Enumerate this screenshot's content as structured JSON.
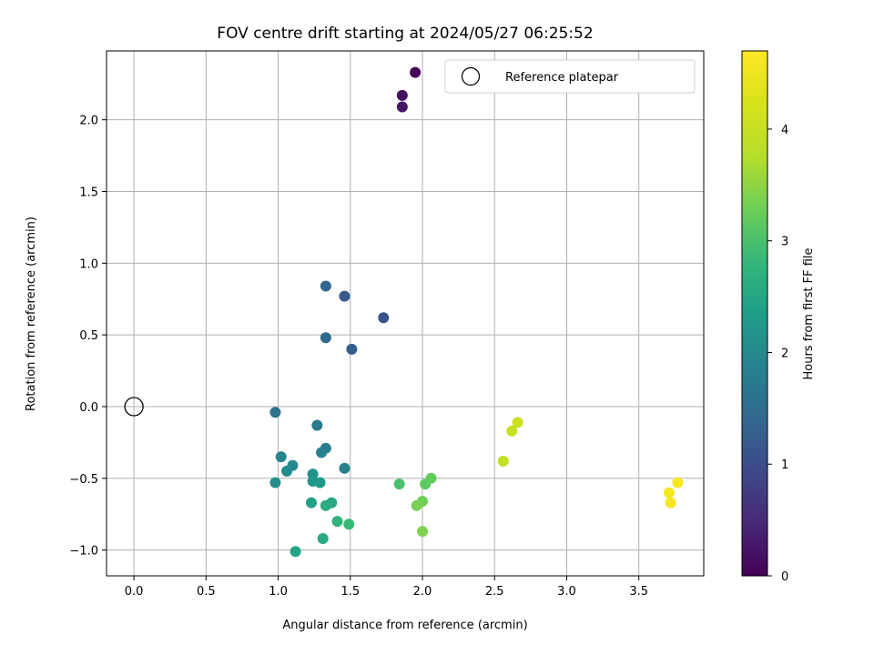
{
  "chart_data": {
    "type": "scatter",
    "title": "FOV centre drift starting at 2024/05/27 06:25:52",
    "xlabel": "Angular distance from reference (arcmin)",
    "ylabel": "Rotation from reference (arcmin)",
    "xlim": [
      -0.19,
      3.95
    ],
    "ylim": [
      -1.18,
      2.48
    ],
    "xticks": [
      0.0,
      0.5,
      1.0,
      1.5,
      2.0,
      2.5,
      3.0,
      3.5
    ],
    "xtick_labels": [
      "0.0",
      "0.5",
      "1.0",
      "1.5",
      "2.0",
      "2.5",
      "3.0",
      "3.5"
    ],
    "yticks": [
      -1.0,
      -0.5,
      0.0,
      0.5,
      1.0,
      1.5,
      2.0
    ],
    "ytick_labels": [
      "−1.0",
      "−0.5",
      "0.0",
      "0.5",
      "1.0",
      "1.5",
      "2.0"
    ],
    "grid": true,
    "legend": {
      "placement": "upper right",
      "entries": [
        "Reference platepar"
      ]
    },
    "colorbar": {
      "label": "Hours from first FF file",
      "min": 0,
      "max": 4.7,
      "ticks": [
        0,
        1,
        2,
        3,
        4
      ],
      "tick_labels": [
        "0",
        "1",
        "2",
        "3",
        "4"
      ],
      "colormap": "viridis"
    },
    "reference_point": {
      "x": 0.0,
      "y": 0.0,
      "label": "Reference platepar"
    },
    "points": [
      {
        "x": 1.95,
        "y": 2.33,
        "c": 0.05
      },
      {
        "x": 1.86,
        "y": 2.17,
        "c": 0.15
      },
      {
        "x": 1.86,
        "y": 2.09,
        "c": 0.25
      },
      {
        "x": 1.73,
        "y": 0.62,
        "c": 1.1
      },
      {
        "x": 1.46,
        "y": 0.77,
        "c": 1.2
      },
      {
        "x": 1.51,
        "y": 0.4,
        "c": 1.25
      },
      {
        "x": 1.33,
        "y": 0.84,
        "c": 1.4
      },
      {
        "x": 1.33,
        "y": 0.48,
        "c": 1.45
      },
      {
        "x": 0.98,
        "y": -0.04,
        "c": 1.6
      },
      {
        "x": 1.27,
        "y": -0.13,
        "c": 1.75
      },
      {
        "x": 1.33,
        "y": -0.29,
        "c": 1.8
      },
      {
        "x": 1.3,
        "y": -0.32,
        "c": 1.85
      },
      {
        "x": 1.46,
        "y": -0.43,
        "c": 1.9
      },
      {
        "x": 1.02,
        "y": -0.35,
        "c": 1.95
      },
      {
        "x": 1.1,
        "y": -0.41,
        "c": 2.0
      },
      {
        "x": 1.06,
        "y": -0.45,
        "c": 2.05
      },
      {
        "x": 0.98,
        "y": -0.53,
        "c": 2.1
      },
      {
        "x": 1.24,
        "y": -0.47,
        "c": 2.15
      },
      {
        "x": 1.24,
        "y": -0.52,
        "c": 2.2
      },
      {
        "x": 1.29,
        "y": -0.53,
        "c": 2.25
      },
      {
        "x": 1.23,
        "y": -0.67,
        "c": 2.4
      },
      {
        "x": 1.37,
        "y": -0.67,
        "c": 2.5
      },
      {
        "x": 1.33,
        "y": -0.69,
        "c": 2.6
      },
      {
        "x": 1.12,
        "y": -1.01,
        "c": 2.45
      },
      {
        "x": 1.31,
        "y": -0.92,
        "c": 2.55
      },
      {
        "x": 1.41,
        "y": -0.8,
        "c": 2.75
      },
      {
        "x": 1.49,
        "y": -0.82,
        "c": 2.85
      },
      {
        "x": 1.84,
        "y": -0.54,
        "c": 3.0
      },
      {
        "x": 2.02,
        "y": -0.54,
        "c": 3.15
      },
      {
        "x": 2.06,
        "y": -0.5,
        "c": 3.2
      },
      {
        "x": 2.0,
        "y": -0.66,
        "c": 3.3
      },
      {
        "x": 1.96,
        "y": -0.69,
        "c": 3.35
      },
      {
        "x": 2.0,
        "y": -0.87,
        "c": 3.4
      },
      {
        "x": 2.56,
        "y": -0.38,
        "c": 3.95
      },
      {
        "x": 2.62,
        "y": -0.17,
        "c": 4.0
      },
      {
        "x": 2.66,
        "y": -0.11,
        "c": 4.05
      },
      {
        "x": 3.77,
        "y": -0.53,
        "c": 4.65
      },
      {
        "x": 3.71,
        "y": -0.6,
        "c": 4.6
      },
      {
        "x": 3.72,
        "y": -0.67,
        "c": 4.62
      }
    ]
  }
}
